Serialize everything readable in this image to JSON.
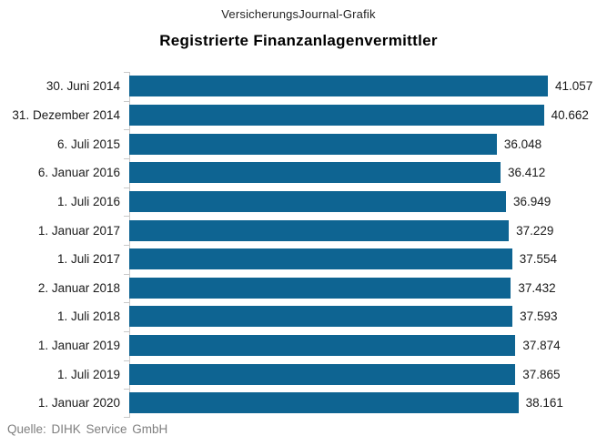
{
  "header": {
    "brand": "VersicherungsJournal-Grafik"
  },
  "title": "Registrierte Finanzanlagenvermittler",
  "source": "Quelle: DIHK Service GmbH",
  "colors": {
    "bar": "#0e6492",
    "axis": "#c9c9c9",
    "source_text": "#7f7f7f"
  },
  "chart_data": {
    "type": "bar",
    "orientation": "horizontal",
    "title": "Registrierte Finanzanlagenvermittler",
    "xlabel": "",
    "ylabel": "",
    "xlim": [
      0,
      41057
    ],
    "grid": false,
    "legend": false,
    "categories": [
      "30. Juni 2014",
      "31. Dezember 2014",
      "6. Juli 2015",
      "6. Januar 2016",
      "1. Juli 2016",
      "1. Januar 2017",
      "1. Juli 2017",
      "2. Januar 2018",
      "1. Juli 2018",
      "1. Januar 2019",
      "1. Juli 2019",
      "1. Januar 2020"
    ],
    "values": [
      41057,
      40662,
      36048,
      36412,
      36949,
      37229,
      37554,
      37432,
      37593,
      37874,
      37865,
      38161
    ],
    "value_labels": [
      "41.057",
      "40.662",
      "36.048",
      "36.412",
      "36.949",
      "37.229",
      "37.554",
      "37.432",
      "37.593",
      "37.874",
      "37.865",
      "38.161"
    ]
  }
}
